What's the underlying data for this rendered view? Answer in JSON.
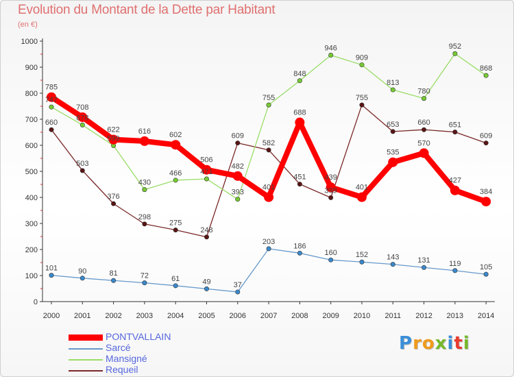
{
  "header": {
    "title": "Evolution du Montant de la Dette par Habitant",
    "subtitle": "(en €)"
  },
  "brand": {
    "letters": [
      "P",
      "r",
      "o",
      "x",
      "i",
      "t",
      "i"
    ],
    "colors": [
      "#3b8fd8",
      "#f09a1c",
      "#f09a1c",
      "#76b82a",
      "#3b8fd8",
      "#e83a2f",
      "#76b82a"
    ]
  },
  "chart_data": {
    "type": "line",
    "x": [
      "2000",
      "2001",
      "2002",
      "2003",
      "2004",
      "2005",
      "2006",
      "2007",
      "2008",
      "2009",
      "2010",
      "2011",
      "2012",
      "2013",
      "2014"
    ],
    "yticks": [
      "0",
      "100",
      "200",
      "300",
      "400",
      "500",
      "600",
      "700",
      "800",
      "900",
      "1000"
    ],
    "ylim": [
      0,
      1000
    ],
    "grid": false,
    "legend_position": "bottom-left",
    "series": [
      {
        "name": "Requeil",
        "color": "#7a2828",
        "point_color": "#5a1414",
        "values": [
          660,
          503,
          376,
          298,
          275,
          248,
          609,
          582,
          451,
          399,
          755,
          653,
          660,
          651,
          609
        ],
        "labels": [
          "660",
          "503",
          "376",
          "298",
          "275",
          "248",
          "609",
          "582",
          "451",
          "399",
          "755",
          "653",
          "660",
          "651",
          "609"
        ]
      },
      {
        "name": "Mansigné",
        "color": "#99dd66",
        "point_color": "#77cc33",
        "values": [
          747,
          678,
          599,
          430,
          466,
          471,
          393,
          755,
          848,
          946,
          909,
          813,
          780,
          952,
          868
        ],
        "labels": [
          "747",
          "678",
          "599",
          "430",
          "466",
          "471",
          "393",
          "755",
          "848",
          "946",
          "909",
          "813",
          "780",
          "952",
          "868"
        ]
      },
      {
        "name": "Sarcé",
        "color": "#6699cc",
        "point_color": "#3a89cc",
        "values": [
          101,
          90,
          81,
          72,
          61,
          49,
          37,
          203,
          186,
          160,
          152,
          143,
          131,
          119,
          105
        ],
        "labels": [
          "101",
          "90",
          "81",
          "72",
          "61",
          "49",
          "37",
          "203",
          "186",
          "160",
          "152",
          "143",
          "131",
          "119",
          "105"
        ]
      },
      {
        "name": "PONTVALLAIN",
        "color": "#ff0000",
        "point_color": "#ff0000",
        "values": [
          785,
          708,
          622,
          616,
          602,
          506,
          482,
          401,
          688,
          439,
          401,
          535,
          570,
          427,
          384
        ],
        "labels": [
          "785",
          "708",
          "622",
          "616",
          "602",
          "506",
          "482",
          "401",
          "688",
          "439",
          "401",
          "535",
          "570",
          "427",
          "384"
        ]
      }
    ]
  },
  "legend": {
    "items": [
      {
        "label": "PONTVALLAIN",
        "color": "#ff0000",
        "width": 9
      },
      {
        "label": "Sarcé",
        "color": "#6699cc",
        "width": 2
      },
      {
        "label": "Mansigné",
        "color": "#99dd66",
        "width": 2
      },
      {
        "label": "Requeil",
        "color": "#7a2828",
        "width": 2
      }
    ]
  }
}
